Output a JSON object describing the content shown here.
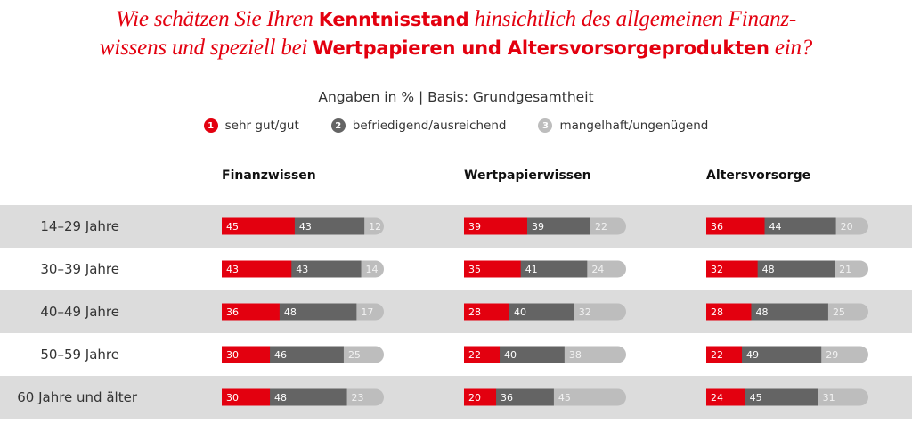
{
  "title": {
    "parts": [
      {
        "text": "Wie schätzen Sie Ihren ",
        "bold": false
      },
      {
        "text": "Kenntnisstand",
        "bold": true
      },
      {
        "text": " hinsichtlich des allgemeinen Finanz-",
        "bold": false
      },
      {
        "text": "\n",
        "bold": false
      },
      {
        "text": "wissens und speziell bei ",
        "bold": false
      },
      {
        "text": "Wertpapieren und Altersvorsorgeprodukten",
        "bold": true
      },
      {
        "text": " ein?",
        "bold": false
      }
    ]
  },
  "subtitle": "Angaben in % | Basis: Grundgesamtheit",
  "legend": [
    {
      "num": "1",
      "label": "sehr gut/gut",
      "color": "#e3000f"
    },
    {
      "num": "2",
      "label": "befriedigend/ausreichend",
      "color": "#646464"
    },
    {
      "num": "3",
      "label": "mangelhaft/ungenügend",
      "color": "#bdbdbd"
    }
  ],
  "colors": {
    "sehr_gut": "#e3000f",
    "befriedigend": "#646464",
    "mangelhaft": "#bdbdbd",
    "band_gray": "#dcdcdc"
  },
  "chart_data": {
    "type": "bar",
    "orientation": "horizontal-stacked",
    "title": "Wie schätzen Sie Ihren Kenntnisstand hinsichtlich des allgemeinen Finanzwissens und speziell bei Wertpapieren und Altersvorsorgeprodukten ein?",
    "subtitle": "Angaben in % | Basis: Grundgesamtheit",
    "unit": "%",
    "categories": [
      "14–29 Jahre",
      "30–39 Jahre",
      "40–49 Jahre",
      "50–59 Jahre",
      "60 Jahre und älter"
    ],
    "series_names": [
      "sehr gut/gut",
      "befriedigend/ausreichend",
      "mangelhaft/ungenügend"
    ],
    "legend_position": "top",
    "panels": [
      {
        "name": "Finanzwissen",
        "values": [
          [
            45,
            43,
            12
          ],
          [
            43,
            43,
            14
          ],
          [
            36,
            48,
            17
          ],
          [
            30,
            46,
            25
          ],
          [
            30,
            48,
            23
          ]
        ]
      },
      {
        "name": "Wertpapierwissen",
        "values": [
          [
            39,
            39,
            22
          ],
          [
            35,
            41,
            24
          ],
          [
            28,
            40,
            32
          ],
          [
            22,
            40,
            38
          ],
          [
            20,
            36,
            45
          ]
        ]
      },
      {
        "name": "Altersvorsorge",
        "values": [
          [
            36,
            44,
            20
          ],
          [
            32,
            48,
            21
          ],
          [
            28,
            48,
            25
          ],
          [
            22,
            49,
            29
          ],
          [
            24,
            45,
            31
          ]
        ]
      }
    ]
  }
}
